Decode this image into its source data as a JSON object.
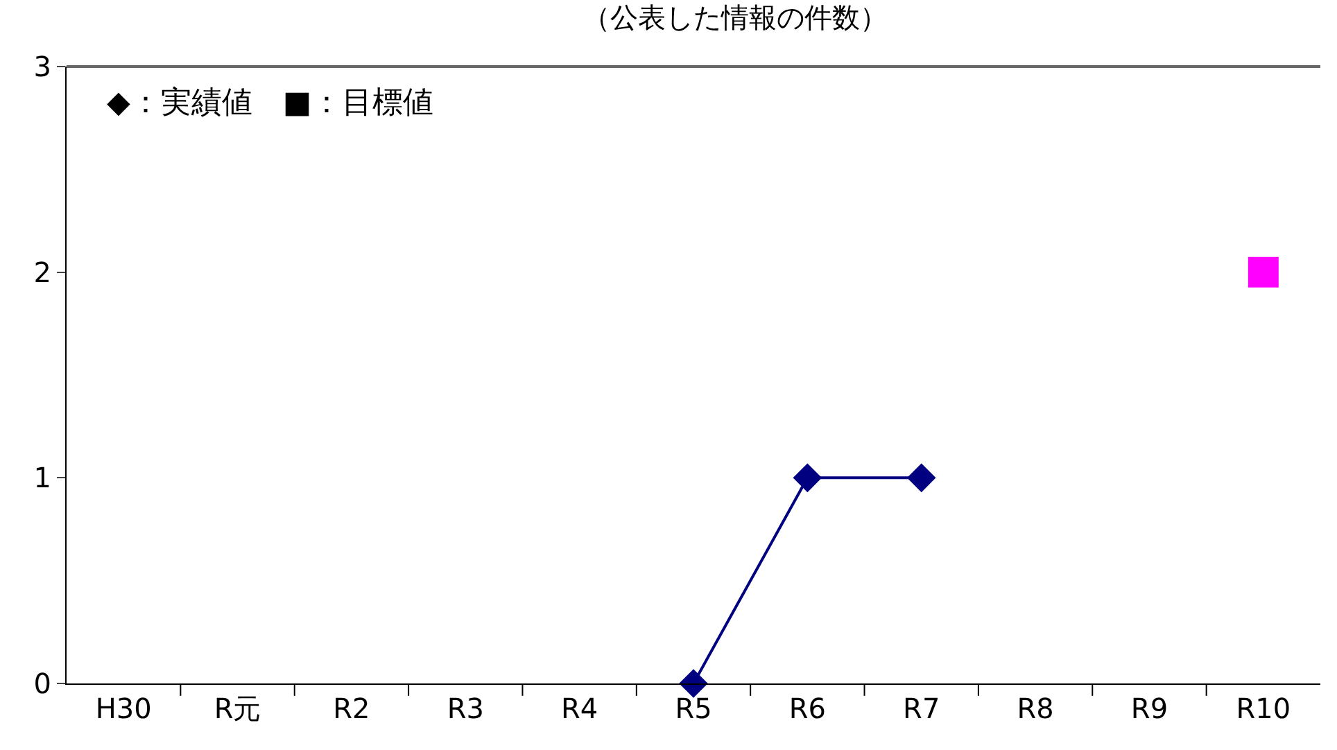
{
  "chart_data": {
    "type": "line",
    "title": "（公表した情報の件数）",
    "categories": [
      "H30",
      "R元",
      "R2",
      "R3",
      "R4",
      "R5",
      "R6",
      "R7",
      "R8",
      "R9",
      "R10"
    ],
    "series": [
      {
        "color": "#000080",
        "marker": "diamond",
        "values": [
          null,
          null,
          null,
          null,
          null,
          0,
          1,
          1,
          null,
          null,
          null
        ]
      },
      {
        "type": "scatter",
        "color": "#ff00ff",
        "marker": "square",
        "values": [
          null,
          null,
          null,
          null,
          null,
          null,
          null,
          null,
          null,
          null,
          2
        ]
      }
    ],
    "ylim": [
      0,
      3
    ],
    "yticks": [
      0,
      1,
      2,
      3
    ],
    "grid": false,
    "line_style": "solid",
    "annotations": [
      "◆：実績値　■：目標値"
    ]
  }
}
